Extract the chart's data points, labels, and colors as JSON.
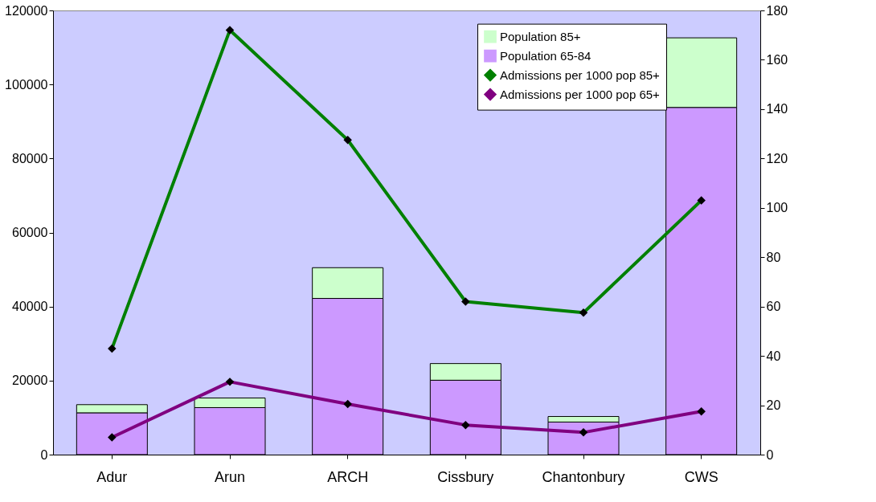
{
  "chart_data": {
    "type": "bar",
    "stacked": true,
    "categories": [
      "Adur",
      "Arun",
      "ARCH",
      "Cissbury",
      "Chantonbury",
      "CWS"
    ],
    "series": [
      {
        "name": "Population 65-84",
        "color": "#cc99ff",
        "values": [
          11300,
          12700,
          42200,
          20100,
          8800,
          93800
        ]
      },
      {
        "name": "Population 85+",
        "color": "#ccffcc",
        "values": [
          2200,
          2600,
          8300,
          4500,
          1500,
          18800
        ]
      },
      {
        "name": "Admissions per 1000 pop 85+",
        "type": "line",
        "axis": "y2",
        "color": "#008000",
        "values": [
          43,
          172,
          127.5,
          62,
          57.5,
          103
        ]
      },
      {
        "name": "Admissions per 1000 pop 65+",
        "type": "line",
        "axis": "y2",
        "color": "#800080",
        "values": [
          7,
          29.5,
          20.5,
          12,
          9,
          17.5
        ]
      }
    ],
    "ylim": [
      0,
      120000
    ],
    "yticks": [
      0,
      20000,
      40000,
      60000,
      80000,
      100000,
      120000
    ],
    "y2lim": [
      0,
      180
    ],
    "y2ticks": [
      0,
      20,
      40,
      60,
      80,
      100,
      120,
      140,
      160,
      180
    ],
    "marker": "diamond",
    "line_style": "solid",
    "grid": false,
    "legend": "top right"
  }
}
